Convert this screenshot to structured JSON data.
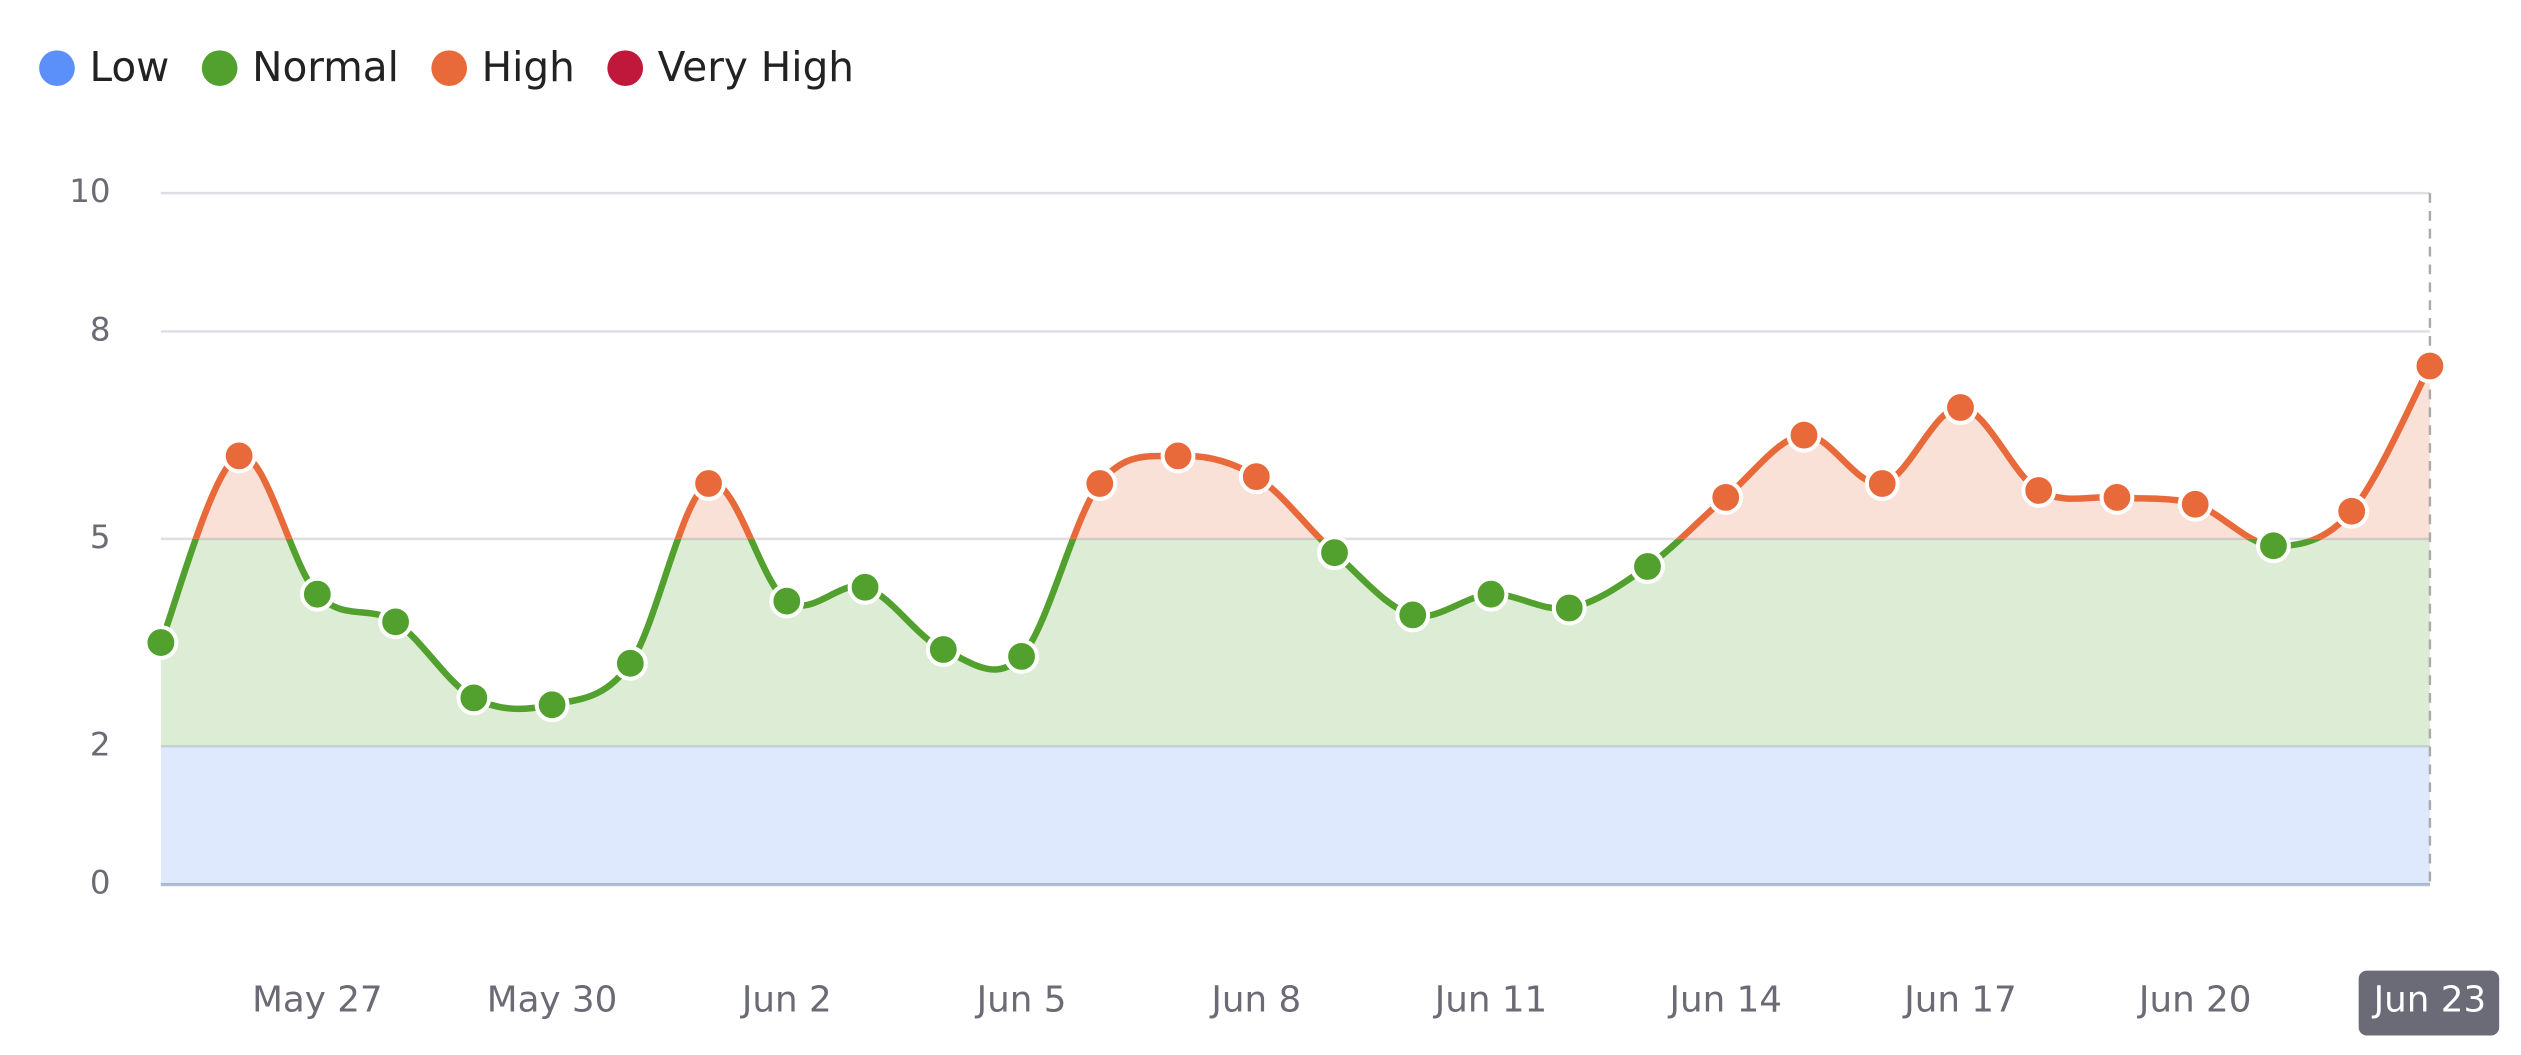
{
  "chart_data": {
    "type": "line",
    "categories": [
      null,
      null,
      "May 27",
      null,
      null,
      "May 30",
      null,
      null,
      "Jun 2",
      null,
      null,
      "Jun 5",
      null,
      null,
      "Jun 8",
      null,
      null,
      "Jun 11",
      null,
      null,
      "Jun 14",
      null,
      null,
      "Jun 17",
      null,
      null,
      "Jun 20",
      null,
      null,
      "Jun 23"
    ],
    "values": [
      3.5,
      6.2,
      4.2,
      3.8,
      2.7,
      2.6,
      3.2,
      5.8,
      4.1,
      4.3,
      3.4,
      3.3,
      5.8,
      6.2,
      5.9,
      4.8,
      3.9,
      4.2,
      4.0,
      4.6,
      5.6,
      6.5,
      5.8,
      6.9,
      5.7,
      5.6,
      5.5,
      4.9,
      5.4,
      7.5
    ],
    "bands": [
      {
        "name": "Low",
        "color": "#5b8ff9",
        "range": [
          0,
          2
        ]
      },
      {
        "name": "Normal",
        "color": "#52a02e",
        "range": [
          2,
          5
        ]
      },
      {
        "name": "High",
        "color": "#e8693a",
        "range": [
          5,
          8
        ]
      },
      {
        "name": "Very High",
        "color": "#c0183a",
        "range": [
          8,
          10
        ]
      }
    ],
    "ylim": [
      0,
      10
    ],
    "yticks": [
      0,
      2,
      5,
      8,
      10
    ],
    "grid": true,
    "legend": "top-left",
    "active_index": 29
  }
}
